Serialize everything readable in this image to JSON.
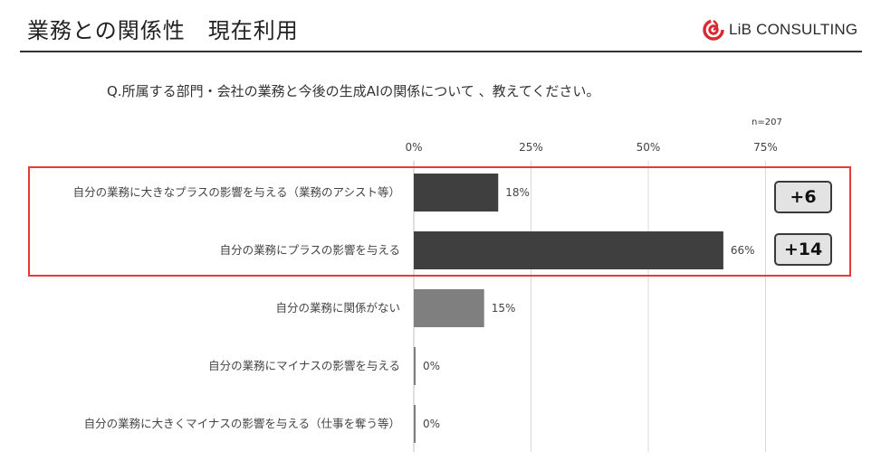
{
  "page": {
    "title": "業務との関係性　現在利用",
    "logo_text": "LiB CONSULTING",
    "question": "Q.所属する部門・会社の業務と今後の生成AIの関係について 、教えてください。",
    "sample_size": "n=207"
  },
  "badges": [
    "+6",
    "+14"
  ],
  "chart_data": {
    "type": "bar",
    "orientation": "horizontal",
    "title": "",
    "xlabel": "",
    "ylabel": "",
    "xlim": [
      0,
      85
    ],
    "ticks": [
      "0%",
      "25%",
      "50%",
      "75%"
    ],
    "tick_values": [
      0,
      25,
      50,
      75
    ],
    "categories": [
      "自分の業務に大きなプラスの影響を与える（業務のアシスト等）",
      "自分の業務にプラスの影響を与える",
      "自分の業務に関係がない",
      "自分の業務にマイナスの影響を与える",
      "自分の業務に大きくマイナスの影響を与える（仕事を奪う等）"
    ],
    "values": [
      18,
      66,
      15,
      0,
      0
    ],
    "value_labels": [
      "18%",
      "66%",
      "15%",
      "0%",
      "0%"
    ],
    "bar_colors": [
      "#3f3f3f",
      "#3f3f3f",
      "#7f7f7f",
      "#7f7f7f",
      "#7f7f7f"
    ],
    "grid": true,
    "highlight_color": "#e63a3a"
  }
}
